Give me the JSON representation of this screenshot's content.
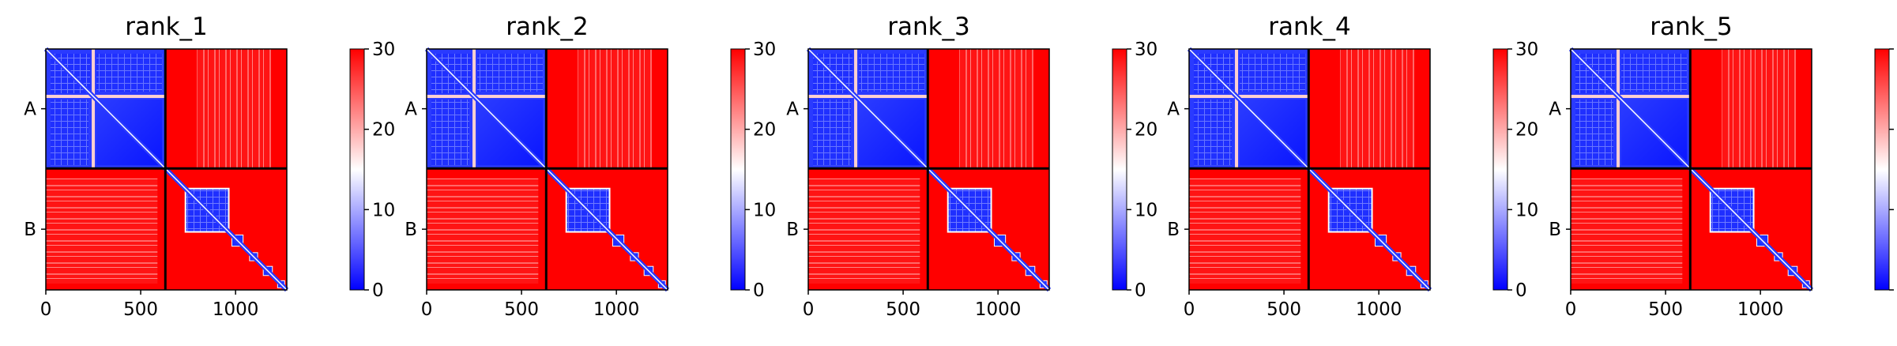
{
  "chart_data": {
    "type": "heatmap",
    "colormap": [
      "#0000ff",
      "#ffffff",
      "#ff0000"
    ],
    "panels": [
      {
        "title": "rank_1"
      },
      {
        "title": "rank_2"
      },
      {
        "title": "rank_3"
      },
      {
        "title": "rank_4"
      },
      {
        "title": "rank_5"
      }
    ],
    "xlim": [
      0,
      1270
    ],
    "x_ticks": [
      "0",
      "500",
      "1000"
    ],
    "x_tick_values": [
      0,
      500,
      1000
    ],
    "chain_labels": [
      "A",
      "B"
    ],
    "chain_boundary": 630,
    "chain_a_blocks": [
      [
        0,
        250
      ],
      [
        250,
        630
      ]
    ],
    "chain_b_blocks": [
      [
        740,
        960
      ],
      [
        960,
        1060
      ],
      [
        1060,
        1130
      ],
      [
        1130,
        1210
      ],
      [
        1210,
        1270
      ]
    ],
    "colorbar": {
      "ticks": [
        "0",
        "10",
        "20",
        "30"
      ],
      "tick_values": [
        0,
        10,
        20,
        30
      ],
      "range": [
        0,
        30
      ]
    }
  }
}
